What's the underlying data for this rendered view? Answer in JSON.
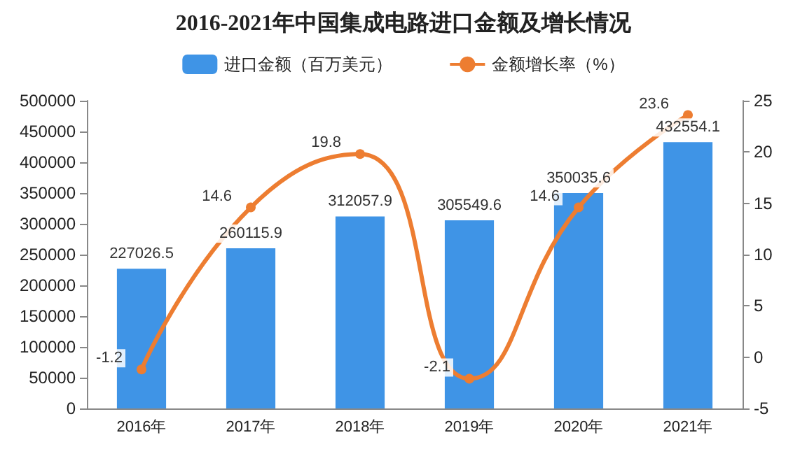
{
  "chart_data": {
    "type": "bar",
    "title": "2016-2021年中国集成电路进口金额及增长情况",
    "categories": [
      "2016年",
      "2017年",
      "2018年",
      "2019年",
      "2020年",
      "2021年"
    ],
    "series": [
      {
        "name": "进口金额（百万美元）",
        "color": "#3f94e6",
        "values": [
          227026.5,
          260115.9,
          312057.9,
          305549.6,
          350035.6,
          432554.1
        ]
      },
      {
        "name": "金额增长率（%）",
        "type": "line",
        "axis": "y2",
        "color": "#ed7d31",
        "marker": "circle",
        "values": [
          -1.2,
          14.6,
          19.8,
          -2.1,
          14.6,
          23.6
        ]
      }
    ],
    "data_labels": true,
    "legend": "top",
    "grid": false,
    "ylim": [
      0,
      500000
    ],
    "yticks": [
      0,
      50000,
      100000,
      150000,
      200000,
      250000,
      300000,
      350000,
      400000,
      450000,
      500000
    ],
    "y2lim": [
      -5,
      25
    ],
    "y2ticks": [
      -5,
      0,
      5,
      10,
      15,
      20,
      25
    ]
  }
}
